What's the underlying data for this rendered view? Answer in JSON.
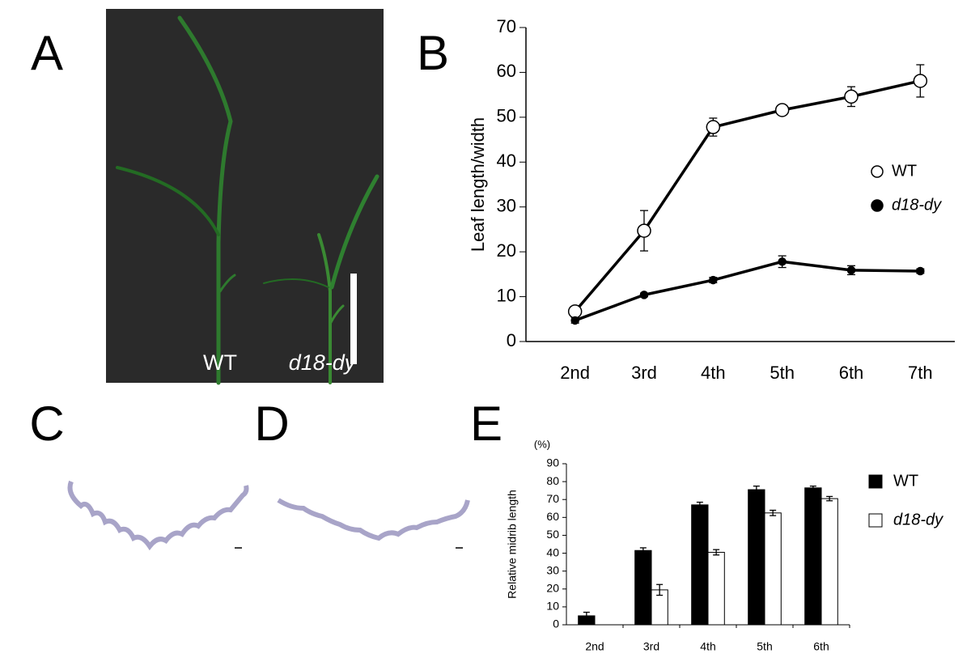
{
  "panel_labels": [
    "A",
    "B",
    "C",
    "D",
    "E"
  ],
  "photo_labels": [
    "WT",
    "d18-dy"
  ],
  "chart_data": [
    {
      "type": "line",
      "ylabel": "Leaf length/width",
      "categories": [
        "2nd",
        "3rd",
        "4th",
        "5th",
        "6th",
        "7th"
      ],
      "series": [
        {
          "name": "WT",
          "color": "#000000",
          "fill": "#ffffff",
          "values": [
            6.7,
            24.7,
            47.8,
            51.6,
            54.6,
            58.1
          ],
          "errors": [
            0.5,
            4.5,
            2,
            0.6,
            2.2,
            3.6
          ]
        },
        {
          "name": "d18-dy",
          "color": "#000000",
          "fill": "#000000",
          "values": [
            4.7,
            10.4,
            13.7,
            17.8,
            15.9,
            15.7
          ],
          "errors": [
            0.6,
            0.4,
            0.6,
            1.3,
            1,
            0.5
          ]
        }
      ],
      "ylim": [
        0,
        70
      ],
      "yticks": [
        0,
        10,
        20,
        30,
        40,
        50,
        60,
        70
      ]
    },
    {
      "type": "bar",
      "ylabel": "Relative midrib length",
      "yunit": "(%)",
      "categories": [
        "2nd",
        "3rd",
        "4th",
        "5th",
        "6th"
      ],
      "series": [
        {
          "name": "WT",
          "color": "#000000",
          "fill": "#000000",
          "values": [
            5,
            41.5,
            67,
            75.5,
            76.5
          ],
          "errors": [
            2,
            1.5,
            1.5,
            2,
            1
          ]
        },
        {
          "name": "d18-dy",
          "color": "#000000",
          "fill": "#ffffff",
          "values": [
            null,
            19.5,
            40.5,
            62.5,
            70.5
          ],
          "errors": [
            null,
            3,
            1.5,
            1.5,
            1.2
          ]
        }
      ],
      "ylim": [
        0,
        90
      ],
      "yticks": [
        0,
        10,
        20,
        30,
        40,
        50,
        60,
        70,
        80,
        90
      ]
    }
  ]
}
